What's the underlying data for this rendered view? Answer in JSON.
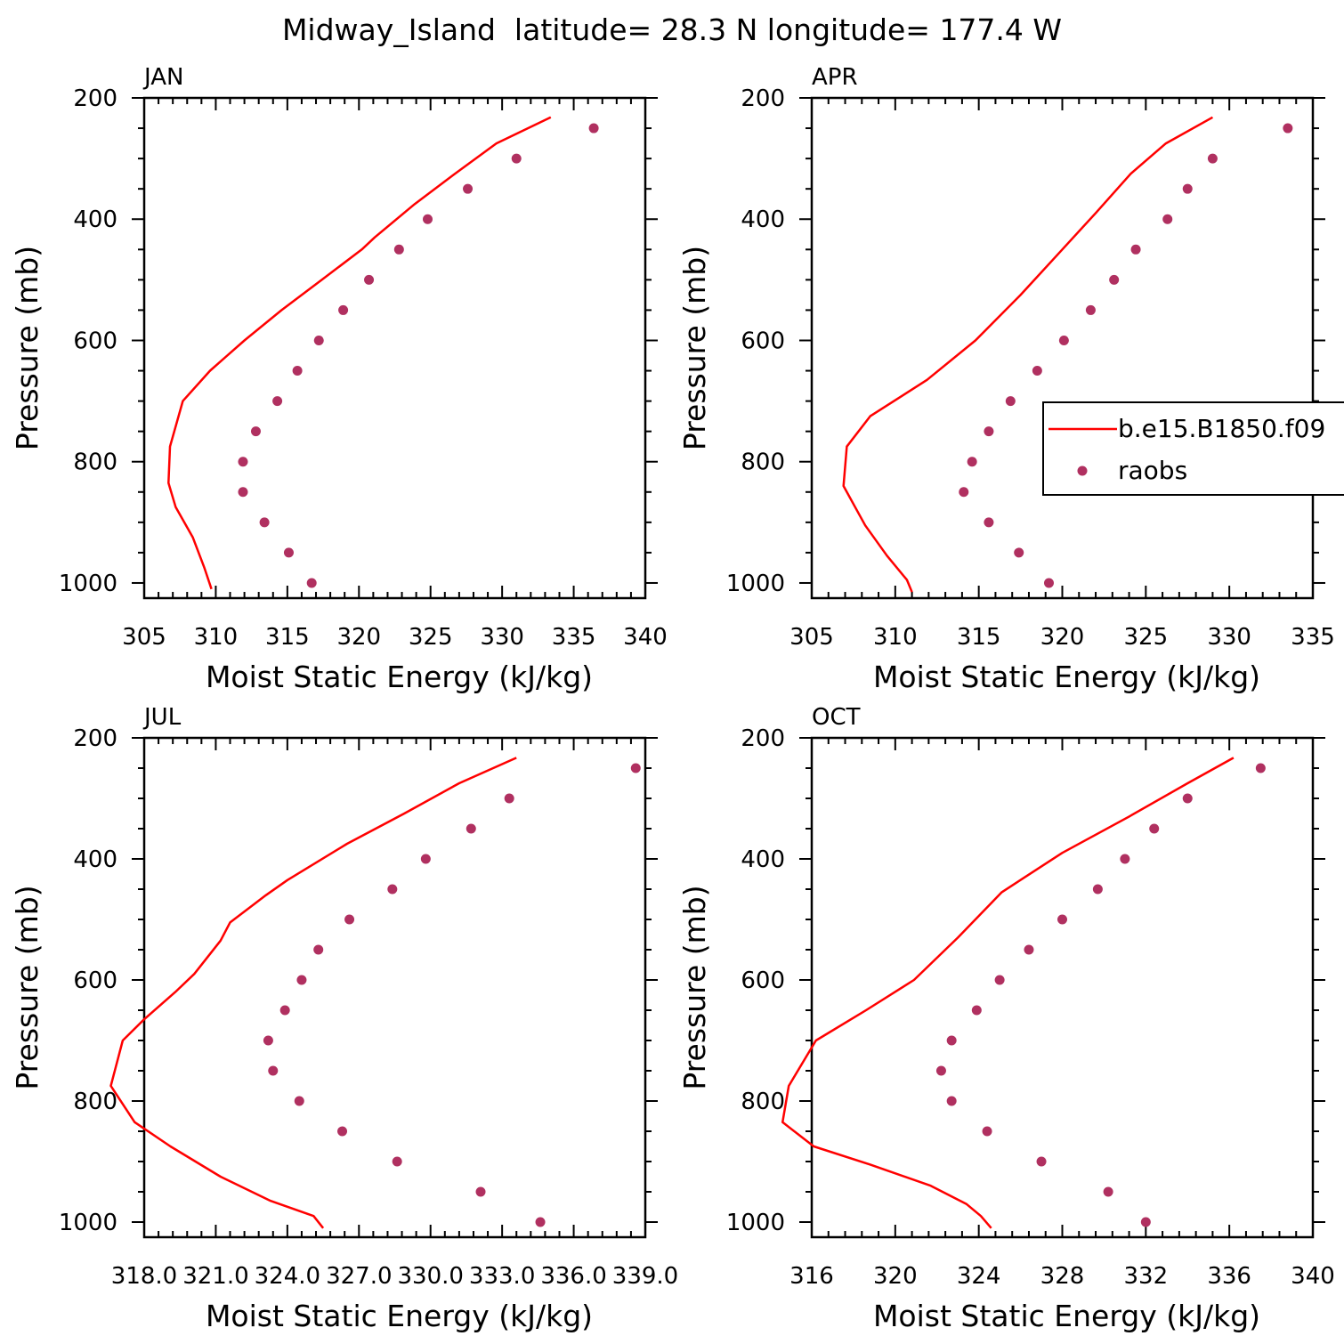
{
  "figure": {
    "title": "Midway_Island  latitude= 28.3 N longitude= 177.4 W",
    "legend": {
      "entries": [
        "b.e15.B1850.f09",
        "raobs"
      ]
    },
    "colors": {
      "model_line": "#ff0000",
      "obs_marker": "#b03060",
      "axes": "#000000"
    }
  },
  "chart_data": [
    {
      "type": "line",
      "panel_label": "JAN",
      "xlabel": "Moist Static Energy (kJ/kg)",
      "ylabel": "Pressure (mb)",
      "xlim": [
        305,
        340
      ],
      "ylim": [
        1025,
        200
      ],
      "xticks": [
        305,
        310,
        315,
        320,
        325,
        330,
        335,
        340
      ],
      "xtick_labels": [
        "305",
        "310",
        "315",
        "320",
        "325",
        "330",
        "335",
        "340"
      ],
      "yticks": [
        200,
        400,
        600,
        800,
        1000
      ],
      "ytick_labels": [
        "200",
        "400",
        "600",
        "800",
        "1000"
      ],
      "series": [
        {
          "name": "b.e15.B1850.f09",
          "style": "line",
          "points": [
            [
              333.4,
              232
            ],
            [
              329.6,
              275
            ],
            [
              326.7,
              325
            ],
            [
              323.9,
              375
            ],
            [
              321.1,
              430
            ],
            [
              320.2,
              450
            ],
            [
              317.4,
              500
            ],
            [
              314.6,
              550
            ],
            [
              312.0,
              600
            ],
            [
              309.6,
              650
            ],
            [
              307.7,
              700
            ],
            [
              306.8,
              775
            ],
            [
              306.7,
              835
            ],
            [
              307.2,
              875
            ],
            [
              308.4,
              925
            ],
            [
              309.2,
              975
            ],
            [
              309.7,
              1010
            ]
          ]
        },
        {
          "name": "raobs",
          "style": "points",
          "points": [
            [
              336.4,
              250
            ],
            [
              331.0,
              300
            ],
            [
              327.6,
              350
            ],
            [
              324.8,
              400
            ],
            [
              322.8,
              450
            ],
            [
              320.7,
              500
            ],
            [
              318.9,
              550
            ],
            [
              317.2,
              600
            ],
            [
              315.7,
              650
            ],
            [
              314.3,
              700
            ],
            [
              312.8,
              750
            ],
            [
              311.9,
              800
            ],
            [
              311.9,
              850
            ],
            [
              313.4,
              900
            ],
            [
              315.1,
              950
            ],
            [
              316.7,
              1000
            ]
          ]
        }
      ]
    },
    {
      "type": "line",
      "panel_label": "APR",
      "xlabel": "Moist Static Energy (kJ/kg)",
      "ylabel": "",
      "xlim": [
        305,
        335
      ],
      "ylim": [
        1025,
        200
      ],
      "xticks": [
        305,
        310,
        315,
        320,
        325,
        330,
        335
      ],
      "xtick_labels": [
        "305",
        "310",
        "315",
        "320",
        "325",
        "330",
        "335"
      ],
      "yticks": [
        200,
        400,
        600,
        800,
        1000
      ],
      "ytick_labels": [
        "200",
        "400",
        "600",
        "800",
        "1000"
      ],
      "series": [
        {
          "name": "b.e15.B1850.f09",
          "style": "line",
          "points": [
            [
              329.0,
              232
            ],
            [
              326.2,
              275
            ],
            [
              324.1,
              325
            ],
            [
              322.0,
              390
            ],
            [
              320.0,
              450
            ],
            [
              317.5,
              525
            ],
            [
              314.8,
              600
            ],
            [
              311.9,
              665
            ],
            [
              308.5,
              725
            ],
            [
              307.1,
              775
            ],
            [
              306.9,
              840
            ],
            [
              307.6,
              875
            ],
            [
              308.2,
              905
            ],
            [
              309.5,
              955
            ],
            [
              310.7,
              995
            ],
            [
              311.0,
              1015
            ]
          ]
        },
        {
          "name": "raobs",
          "style": "points",
          "points": [
            [
              333.5,
              250
            ],
            [
              329.0,
              300
            ],
            [
              327.5,
              350
            ],
            [
              326.3,
              400
            ],
            [
              324.4,
              450
            ],
            [
              323.1,
              500
            ],
            [
              321.7,
              550
            ],
            [
              320.1,
              600
            ],
            [
              318.5,
              650
            ],
            [
              316.9,
              700
            ],
            [
              315.6,
              750
            ],
            [
              314.6,
              800
            ],
            [
              314.1,
              850
            ],
            [
              315.6,
              900
            ],
            [
              317.4,
              950
            ],
            [
              319.2,
              1000
            ]
          ]
        }
      ]
    },
    {
      "type": "line",
      "panel_label": "JUL",
      "xlabel": "Moist Static Energy (kJ/kg)",
      "ylabel": "Pressure (mb)",
      "xlim": [
        318.0,
        339.0
      ],
      "ylim": [
        1025,
        200
      ],
      "xticks": [
        318.0,
        321.0,
        324.0,
        327.0,
        330.0,
        333.0,
        336.0,
        339.0
      ],
      "xtick_labels": [
        "318.0",
        "321.0",
        "324.0",
        "327.0",
        "330.0",
        "333.0",
        "336.0",
        "339.0"
      ],
      "yticks": [
        200,
        400,
        600,
        800,
        1000
      ],
      "ytick_labels": [
        "200",
        "400",
        "600",
        "800",
        "1000"
      ],
      "series": [
        {
          "name": "b.e15.B1850.f09",
          "style": "line",
          "points": [
            [
              333.6,
              233
            ],
            [
              331.2,
              275
            ],
            [
              328.9,
              325
            ],
            [
              326.5,
              375
            ],
            [
              324.0,
              435
            ],
            [
              323.1,
              460
            ],
            [
              321.6,
              505
            ],
            [
              321.2,
              535
            ],
            [
              320.1,
              590
            ],
            [
              319.3,
              620
            ],
            [
              318.0,
              665
            ],
            [
              317.1,
              700
            ],
            [
              316.6,
              775
            ],
            [
              317.6,
              835
            ],
            [
              319.1,
              875
            ],
            [
              321.2,
              925
            ],
            [
              323.3,
              965
            ],
            [
              325.1,
              990
            ],
            [
              325.5,
              1010
            ]
          ]
        },
        {
          "name": "raobs",
          "style": "points",
          "points": [
            [
              338.6,
              250
            ],
            [
              333.3,
              300
            ],
            [
              331.7,
              350
            ],
            [
              329.8,
              400
            ],
            [
              328.4,
              450
            ],
            [
              326.6,
              500
            ],
            [
              325.3,
              550
            ],
            [
              324.6,
              600
            ],
            [
              323.9,
              650
            ],
            [
              323.2,
              700
            ],
            [
              323.4,
              750
            ],
            [
              324.5,
              800
            ],
            [
              326.3,
              850
            ],
            [
              328.6,
              900
            ],
            [
              332.1,
              950
            ],
            [
              334.6,
              1000
            ]
          ]
        }
      ]
    },
    {
      "type": "line",
      "panel_label": "OCT",
      "xlabel": "Moist Static Energy (kJ/kg)",
      "ylabel": "",
      "xlim": [
        316,
        340
      ],
      "ylim": [
        1025,
        200
      ],
      "xticks": [
        316,
        320,
        324,
        328,
        332,
        336,
        340
      ],
      "xtick_labels": [
        "316",
        "320",
        "324",
        "328",
        "332",
        "336",
        "340"
      ],
      "yticks": [
        200,
        400,
        600,
        800,
        1000
      ],
      "ytick_labels": [
        "200",
        "400",
        "600",
        "800",
        "1000"
      ],
      "series": [
        {
          "name": "b.e15.B1850.f09",
          "style": "line",
          "points": [
            [
              336.2,
              233
            ],
            [
              334.0,
              275
            ],
            [
              331.2,
              330
            ],
            [
              328.0,
              390
            ],
            [
              325.1,
              455
            ],
            [
              323.0,
              530
            ],
            [
              320.9,
              600
            ],
            [
              318.6,
              650
            ],
            [
              316.2,
              700
            ],
            [
              314.9,
              775
            ],
            [
              314.6,
              835
            ],
            [
              316.1,
              875
            ],
            [
              318.8,
              905
            ],
            [
              321.7,
              940
            ],
            [
              323.4,
              970
            ],
            [
              324.1,
              990
            ],
            [
              324.6,
              1010
            ]
          ]
        },
        {
          "name": "raobs",
          "style": "points",
          "points": [
            [
              337.5,
              250
            ],
            [
              334.0,
              300
            ],
            [
              332.4,
              350
            ],
            [
              331.0,
              400
            ],
            [
              329.7,
              450
            ],
            [
              328.0,
              500
            ],
            [
              326.4,
              550
            ],
            [
              325.0,
              600
            ],
            [
              323.9,
              650
            ],
            [
              322.7,
              700
            ],
            [
              322.2,
              750
            ],
            [
              322.7,
              800
            ],
            [
              324.4,
              850
            ],
            [
              327.0,
              900
            ],
            [
              330.2,
              950
            ],
            [
              332.0,
              1000
            ]
          ]
        }
      ]
    }
  ]
}
